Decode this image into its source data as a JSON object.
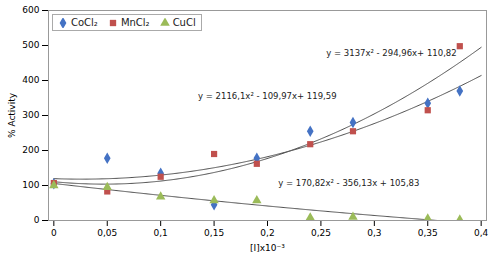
{
  "chart_data": {
    "type": "scatter",
    "xlabel": "[I]x10⁻³",
    "ylabel": "% Activity",
    "xlim": [
      -0.005,
      0.405
    ],
    "ylim": [
      0,
      600
    ],
    "xticks": [
      0,
      {
        "value": 0.05,
        "label": "0,05"
      },
      {
        "value": 0.1,
        "label": "0,1"
      },
      {
        "value": 0.15,
        "label": "0,15"
      },
      {
        "value": 0.2,
        "label": "0,2"
      },
      {
        "value": 0.25,
        "label": "0,25"
      },
      {
        "value": 0.3,
        "label": "0,3"
      },
      {
        "value": 0.35,
        "label": "0,35"
      },
      {
        "value": 0.4,
        "label": "0,4"
      }
    ],
    "yticks": [
      0,
      100,
      200,
      300,
      400,
      500,
      600
    ],
    "grid": false,
    "legend": "upper left",
    "fit_color": "#505050",
    "series": [
      {
        "name": "CoCl₂",
        "color": "#4472C4",
        "marker": "diamond",
        "x": [
          0,
          0.05,
          0.1,
          0.15,
          0.19,
          0.24,
          0.28,
          0.35,
          0.38
        ],
        "values": [
          105,
          178,
          135,
          45,
          178,
          255,
          280,
          335,
          370
        ],
        "fit": {
          "coeffs": [
            2116.1,
            -109.97,
            119.59
          ],
          "x_range": [
            0,
            0.4
          ]
        }
      },
      {
        "name": "MnCl₂",
        "color": "#C0504D",
        "marker": "square",
        "x": [
          0,
          0.05,
          0.1,
          0.15,
          0.19,
          0.24,
          0.28,
          0.35,
          0.38
        ],
        "values": [
          107,
          83,
          125,
          190,
          162,
          218,
          255,
          315,
          498
        ],
        "fit": {
          "coeffs": [
            3137,
            -294.96,
            110.82
          ],
          "x_range": [
            0,
            0.4
          ]
        }
      },
      {
        "name": "CuCl",
        "color": "#9BBB59",
        "marker": "triangle",
        "x": [
          0,
          0.05,
          0.1,
          0.15,
          0.19,
          0.24,
          0.28,
          0.35,
          0.38
        ],
        "values": [
          100,
          95,
          68,
          57,
          57,
          8,
          10,
          5,
          2
        ],
        "fit": {
          "coeffs": [
            170.82,
            -356.13,
            105.83
          ],
          "x_range": [
            0,
            0.4
          ]
        }
      }
    ],
    "annotations": [
      {
        "text": "y = 3137x² - 294,96x+ 110,82",
        "x": 0.255,
        "y": 470
      },
      {
        "text": "y = 2116,1x² - 109,97x+ 119,59",
        "x": 0.135,
        "y": 348
      },
      {
        "text": "y = 170,82x² - 356,13x + 105,83",
        "x": 0.21,
        "y": 100
      }
    ]
  }
}
